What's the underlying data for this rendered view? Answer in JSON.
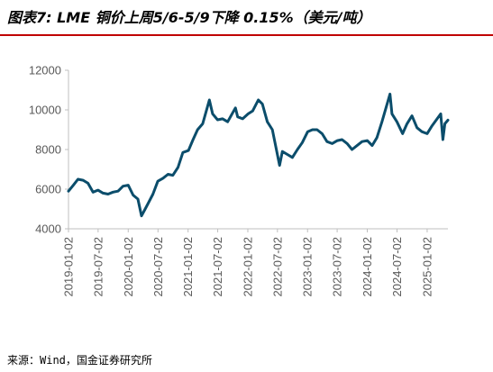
{
  "title": "图表7: LME 铜价上周5/6-5/9下降 0.15%（美元/吨）",
  "source": "来源：Wind，国金证券研究所",
  "colors": {
    "line": "#0b4d6b",
    "title_rule": "#c00000",
    "axis": "#bfbfbf",
    "text": "#595959"
  },
  "chart_data": {
    "type": "line",
    "title": "LME 铜价上周5/6-5/9下降 0.15%",
    "xlabel": "",
    "ylabel": "美元/吨",
    "ylim": [
      4000,
      12000
    ],
    "yticks": [
      4000,
      6000,
      8000,
      10000,
      12000
    ],
    "ytick_labels": [
      "4000",
      "6000",
      "8000",
      "10000",
      "12000"
    ],
    "xlim": [
      "2019-01-02",
      "2025-05-09"
    ],
    "xtick_labels": [
      "2019-01-02",
      "2019-07-02",
      "2020-01-02",
      "2020-07-02",
      "2021-01-02",
      "2021-07-02",
      "2022-01-02",
      "2022-07-02",
      "2023-01-02",
      "2023-07-02",
      "2024-01-02",
      "2024-07-02",
      "2025-01-02"
    ],
    "grid": false,
    "legend": "none",
    "series": [
      {
        "name": "",
        "x": [
          "2019-01-02",
          "2019-02-01",
          "2019-03-01",
          "2019-04-01",
          "2019-05-01",
          "2019-06-01",
          "2019-07-01",
          "2019-08-01",
          "2019-09-01",
          "2019-10-01",
          "2019-11-01",
          "2019-12-01",
          "2020-01-02",
          "2020-02-01",
          "2020-03-01",
          "2020-03-23",
          "2020-04-15",
          "2020-05-01",
          "2020-06-01",
          "2020-07-01",
          "2020-08-01",
          "2020-09-01",
          "2020-10-01",
          "2020-11-01",
          "2020-12-01",
          "2021-01-04",
          "2021-02-01",
          "2021-03-01",
          "2021-04-01",
          "2021-05-12",
          "2021-06-01",
          "2021-07-01",
          "2021-08-01",
          "2021-09-01",
          "2021-10-18",
          "2021-11-01",
          "2021-12-01",
          "2022-01-04",
          "2022-02-01",
          "2022-03-07",
          "2022-04-01",
          "2022-05-01",
          "2022-06-01",
          "2022-07-15",
          "2022-08-01",
          "2022-09-01",
          "2022-10-01",
          "2022-11-01",
          "2022-12-01",
          "2023-01-03",
          "2023-02-01",
          "2023-03-01",
          "2023-04-01",
          "2023-05-01",
          "2023-06-01",
          "2023-07-03",
          "2023-08-01",
          "2023-09-01",
          "2023-10-01",
          "2023-11-01",
          "2023-12-01",
          "2024-01-02",
          "2024-02-01",
          "2024-03-01",
          "2024-04-01",
          "2024-05-20",
          "2024-06-01",
          "2024-07-01",
          "2024-08-05",
          "2024-09-01",
          "2024-10-01",
          "2024-11-01",
          "2024-12-01",
          "2025-01-02",
          "2025-02-01",
          "2025-03-26",
          "2025-04-08",
          "2025-04-20",
          "2025-05-09"
        ],
        "values": [
          5900,
          6200,
          6500,
          6450,
          6300,
          5850,
          5950,
          5800,
          5750,
          5850,
          5900,
          6150,
          6200,
          5700,
          5500,
          4650,
          5000,
          5250,
          5750,
          6400,
          6550,
          6750,
          6700,
          7100,
          7850,
          7950,
          8500,
          9000,
          9300,
          10500,
          9800,
          9500,
          9550,
          9400,
          10100,
          9650,
          9550,
          9800,
          9950,
          10500,
          10300,
          9400,
          9000,
          7200,
          7900,
          7750,
          7600,
          8000,
          8350,
          8900,
          9000,
          9000,
          8800,
          8400,
          8300,
          8450,
          8500,
          8300,
          8000,
          8200,
          8400,
          8450,
          8200,
          8600,
          9400,
          10800,
          9800,
          9400,
          8800,
          9300,
          9700,
          9100,
          8900,
          8800,
          9200,
          9800,
          8500,
          9300,
          9480
        ]
      }
    ]
  }
}
